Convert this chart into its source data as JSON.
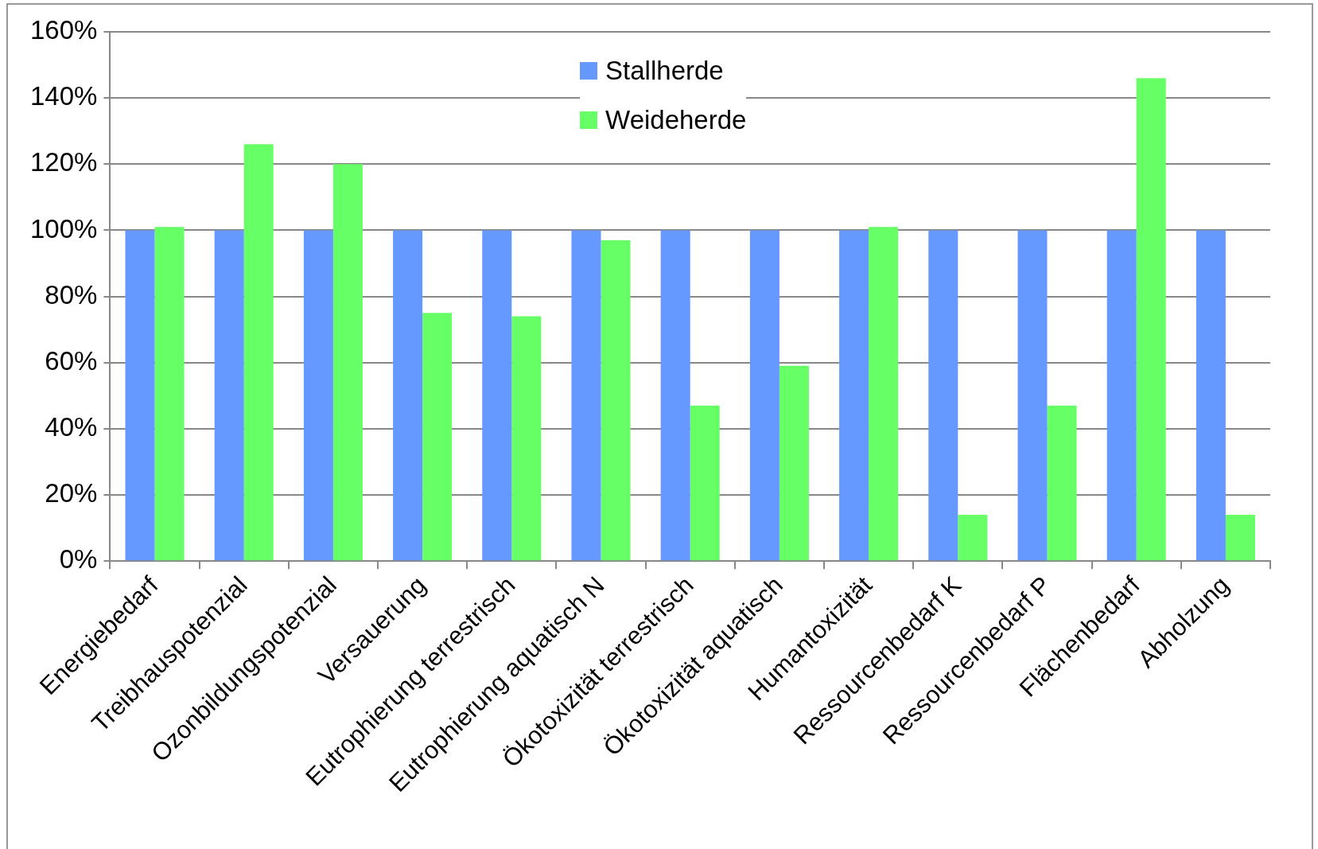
{
  "chart_data": {
    "type": "bar",
    "categories": [
      "Energiebedarf",
      "Treibhauspotenzial",
      "Ozonbildungspotenzial",
      "Versauerung",
      "Eutrophierung terrestrisch",
      "Eutrophierung aquatisch N",
      "Ökotoxizität terrestrisch",
      "Ökotoxizität aquatisch",
      "Humantoxizität",
      "Ressourcenbedarf K",
      "Ressourcenbedarf P",
      "Flächenbedarf",
      "Abholzung"
    ],
    "series": [
      {
        "name": "Stallherde",
        "color": "#6699ff",
        "values": [
          100,
          100,
          100,
          100,
          100,
          100,
          100,
          100,
          100,
          100,
          100,
          100,
          100
        ]
      },
      {
        "name": "Weideherde",
        "color": "#66ff66",
        "values": [
          101,
          126,
          120,
          75,
          74,
          97,
          47,
          59,
          101,
          14,
          47,
          146,
          14
        ]
      }
    ],
    "ylim": [
      0,
      160
    ],
    "yticks": [
      {
        "value": 0,
        "label": "0%"
      },
      {
        "value": 20,
        "label": "20%"
      },
      {
        "value": 40,
        "label": "40%"
      },
      {
        "value": 60,
        "label": "60%"
      },
      {
        "value": 80,
        "label": "80%"
      },
      {
        "value": 100,
        "label": "100%"
      },
      {
        "value": 120,
        "label": "120%"
      },
      {
        "value": 140,
        "label": "140%"
      },
      {
        "value": 160,
        "label": "160%"
      }
    ],
    "grid": "y",
    "legend": "top"
  }
}
